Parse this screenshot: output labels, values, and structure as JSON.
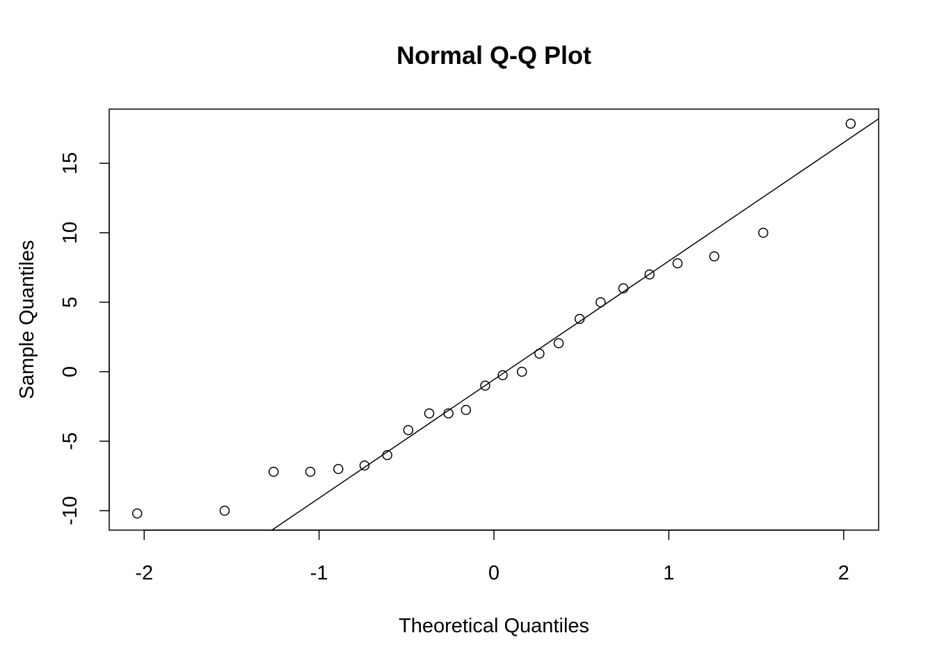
{
  "chart_data": {
    "type": "scatter",
    "title": "Normal Q-Q Plot",
    "xlabel": "Theoretical Quantiles",
    "ylabel": "Sample Quantiles",
    "xlim": [
      -2.2,
      2.2
    ],
    "ylim": [
      -11.4,
      18.9
    ],
    "x_ticks": [
      -2,
      -1,
      0,
      1,
      2
    ],
    "x_tick_labels": [
      "-2",
      "-1",
      "0",
      "1",
      "2"
    ],
    "y_ticks": [
      -10,
      -5,
      0,
      5,
      10,
      15
    ],
    "y_tick_labels": [
      "-10",
      "-5",
      "0",
      "5",
      "10",
      "15"
    ],
    "grid": false,
    "legend": "none",
    "points": {
      "x": [
        -2.04,
        -1.54,
        -1.26,
        -1.05,
        -0.89,
        -0.74,
        -0.61,
        -0.49,
        -0.37,
        -0.26,
        -0.16,
        -0.05,
        0.05,
        0.16,
        0.26,
        0.37,
        0.49,
        0.61,
        0.74,
        0.89,
        1.05,
        1.26,
        1.54,
        2.04
      ],
      "y": [
        -10.2,
        -10.0,
        -7.2,
        -7.2,
        -7.0,
        -6.75,
        -6.0,
        -4.2,
        -3.0,
        -3.0,
        -2.75,
        -1.0,
        -0.25,
        0.0,
        1.3,
        2.05,
        3.8,
        5.0,
        6.0,
        7.0,
        7.8,
        8.3,
        10.0,
        17.85
      ]
    },
    "reference_line": {
      "x": [
        -1.27,
        2.2
      ],
      "y": [
        -11.4,
        18.2
      ]
    }
  }
}
